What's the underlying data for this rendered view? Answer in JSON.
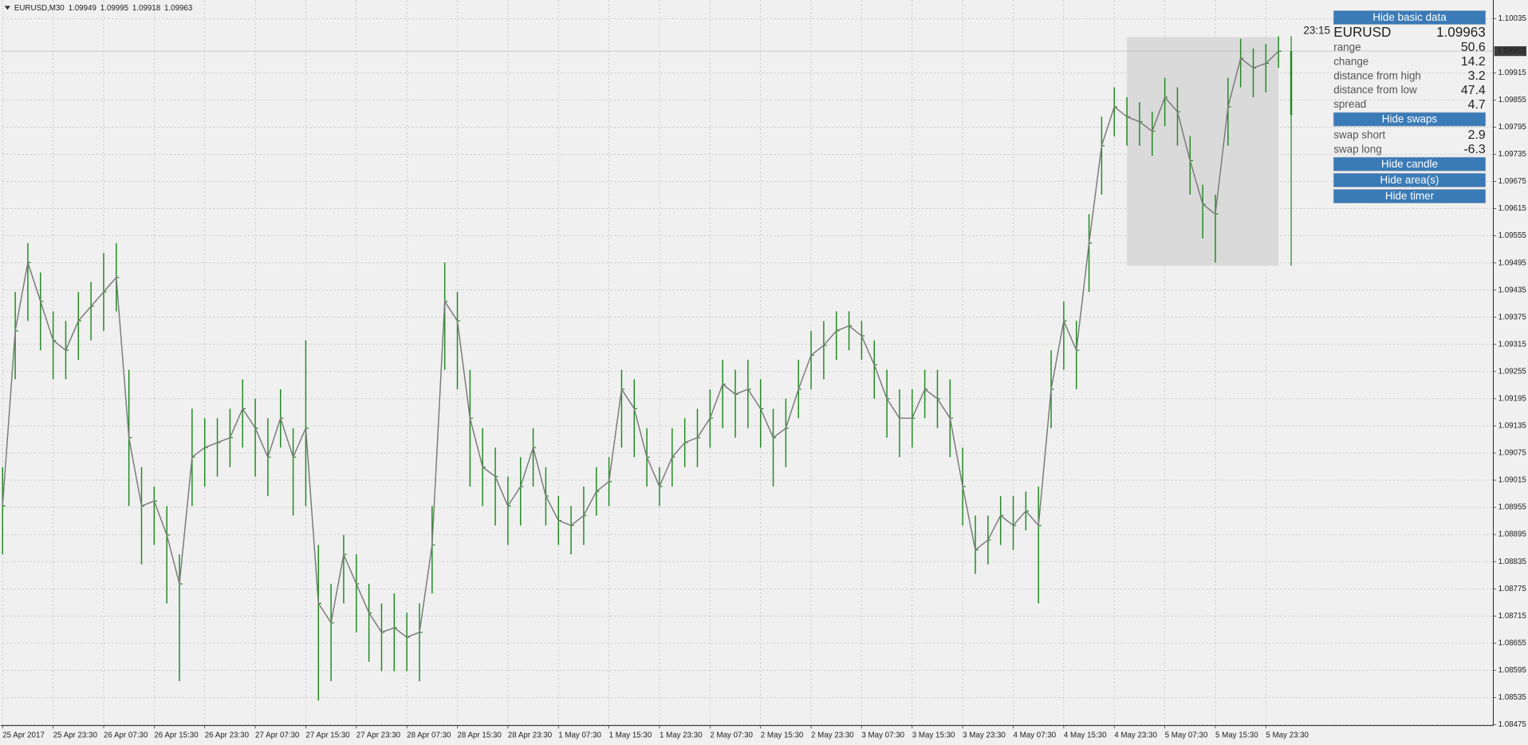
{
  "chart_data": {
    "type": "ohlc",
    "header": {
      "symbol": "EURUSD,M30",
      "open": 1.09949,
      "high": 1.09995,
      "low": 1.09918,
      "close": 1.09963
    },
    "xlim": [
      0,
      118
    ],
    "xticks": [
      {
        "value": 0,
        "label": "25 Apr 2017"
      },
      {
        "value": 4,
        "label": "25 Apr 23:30"
      },
      {
        "value": 8,
        "label": "26 Apr 07:30"
      },
      {
        "value": 12,
        "label": "26 Apr 15:30"
      },
      {
        "value": 16,
        "label": "26 Apr 23:30"
      },
      {
        "value": 20,
        "label": "27 Apr 07:30"
      },
      {
        "value": 24,
        "label": "27 Apr 15:30"
      },
      {
        "value": 28,
        "label": "27 Apr 23:30"
      },
      {
        "value": 32,
        "label": "28 Apr 07:30"
      },
      {
        "value": 36,
        "label": "28 Apr 15:30"
      },
      {
        "value": 40,
        "label": "28 Apr 23:30"
      },
      {
        "value": 44,
        "label": "1 May 07:30"
      },
      {
        "value": 48,
        "label": "1 May 15:30"
      },
      {
        "value": 52,
        "label": "1 May 23:30"
      },
      {
        "value": 56,
        "label": "2 May 07:30"
      },
      {
        "value": 60,
        "label": "2 May 15:30"
      },
      {
        "value": 64,
        "label": "2 May 23:30"
      },
      {
        "value": 68,
        "label": "3 May 07:30"
      },
      {
        "value": 72,
        "label": "3 May 15:30"
      },
      {
        "value": 76,
        "label": "3 May 23:30"
      },
      {
        "value": 80,
        "label": "4 May 07:30"
      },
      {
        "value": 84,
        "label": "4 May 15:30"
      },
      {
        "value": 88,
        "label": "4 May 23:30"
      },
      {
        "value": 92,
        "label": "5 May 07:30"
      },
      {
        "value": 96,
        "label": "5 May 15:30"
      },
      {
        "value": 100,
        "label": "5 May 23:30"
      }
    ],
    "ylim": [
      1.08473,
      1.10076
    ],
    "yticks": [
      1.10035,
      1.09915,
      1.09855,
      1.09795,
      1.09735,
      1.09675,
      1.09615,
      1.09555,
      1.09495,
      1.09435,
      1.09375,
      1.09315,
      1.09255,
      1.09195,
      1.09135,
      1.09075,
      1.09015,
      1.08955,
      1.08895,
      1.08835,
      1.08775,
      1.08715,
      1.08655,
      1.08595,
      1.08535,
      1.08475
    ],
    "grid": true,
    "color": "#1f8a1f",
    "ma_color": "#7a7a7a",
    "high": [
      1.09044,
      1.09431,
      1.09539,
      1.09474,
      1.09388,
      1.09367,
      1.09431,
      1.09453,
      1.09517,
      1.09539,
      1.09259,
      1.09044,
      1.09001,
      1.08958,
      1.08851,
      1.09173,
      1.09152,
      1.09152,
      1.09173,
      1.09238,
      1.09195,
      1.09152,
      1.09216,
      1.0913,
      1.09324,
      1.08872,
      1.08786,
      1.08894,
      1.08851,
      1.08786,
      1.08743,
      1.08765,
      1.08722,
      1.08743,
      1.08958,
      1.09496,
      1.09431,
      1.09259,
      1.0913,
      1.09087,
      1.09023,
      1.09066,
      1.0913,
      1.09044,
      1.0898,
      1.08958,
      1.09001,
      1.09044,
      1.09066,
      1.09259,
      1.09238,
      1.0913,
      1.09044,
      1.0913,
      1.09152,
      1.09173,
      1.09216,
      1.09281,
      1.09259,
      1.09281,
      1.09238,
      1.09173,
      1.09195,
      1.09281,
      1.09345,
      1.09367,
      1.09388,
      1.09388,
      1.09367,
      1.09324,
      1.09259,
      1.09216,
      1.09216,
      1.09259,
      1.09259,
      1.09238,
      1.09087,
      1.08937,
      1.08937,
      1.0898,
      1.0898,
      1.0899,
      1.09001,
      1.09302,
      1.0941,
      1.09367,
      1.09603,
      1.09818,
      1.09883,
      1.09861,
      1.0985,
      1.09829,
      1.09904,
      1.09883,
      1.09775,
      1.09668,
      1.09646,
      1.09904,
      1.0999,
      1.09969,
      1.09979,
      1.09996
    ],
    "low": [
      1.08851,
      1.09238,
      1.09367,
      1.09302,
      1.09238,
      1.09238,
      1.09281,
      1.09324,
      1.09345,
      1.09388,
      1.08958,
      1.08829,
      1.08872,
      1.08743,
      1.08571,
      1.08958,
      1.09001,
      1.09023,
      1.09044,
      1.09087,
      1.09023,
      1.0898,
      1.09087,
      1.08937,
      1.08958,
      1.08528,
      1.08571,
      1.08743,
      1.08679,
      1.08614,
      1.08593,
      1.08593,
      1.08593,
      1.08571,
      1.08765,
      1.09259,
      1.09216,
      1.09001,
      1.08958,
      1.08915,
      1.08872,
      1.08915,
      1.09001,
      1.08915,
      1.08872,
      1.08851,
      1.08872,
      1.08937,
      1.08958,
      1.09087,
      1.09066,
      1.09001,
      1.08958,
      1.09001,
      1.09044,
      1.09044,
      1.09087,
      1.0913,
      1.09109,
      1.0913,
      1.09087,
      1.09001,
      1.09044,
      1.09152,
      1.09216,
      1.09238,
      1.09281,
      1.09302,
      1.09281,
      1.09195,
      1.09109,
      1.09066,
      1.09087,
      1.09152,
      1.0913,
      1.09066,
      1.08915,
      1.08808,
      1.08829,
      1.08872,
      1.08861,
      1.08904,
      1.08743,
      1.0913,
      1.09259,
      1.09216,
      1.09431,
      1.09646,
      1.09775,
      1.09754,
      1.09754,
      1.09732,
      1.09797,
      1.09754,
      1.09646,
      1.09549,
      1.09496,
      1.09754,
      1.09883,
      1.09861,
      1.09872,
      1.09926
    ],
    "close": [
      1.08958,
      1.09345,
      1.09496,
      1.0941,
      1.09324,
      1.09302,
      1.09367,
      1.09399,
      1.09431,
      1.09463,
      1.09109,
      1.08958,
      1.08969,
      1.08894,
      1.08786,
      1.09066,
      1.09087,
      1.09098,
      1.09109,
      1.09173,
      1.0913,
      1.09066,
      1.09152,
      1.09066,
      1.0913,
      1.08743,
      1.087,
      1.08851,
      1.08786,
      1.08722,
      1.08679,
      1.08689,
      1.08668,
      1.08679,
      1.08872,
      1.0941,
      1.09367,
      1.09152,
      1.09044,
      1.09023,
      1.08958,
      1.09001,
      1.09087,
      1.0898,
      1.08926,
      1.08915,
      1.08937,
      1.0899,
      1.09012,
      1.09216,
      1.09173,
      1.09066,
      1.09001,
      1.09066,
      1.09098,
      1.09109,
      1.09152,
      1.09227,
      1.09205,
      1.09216,
      1.09173,
      1.09109,
      1.0913,
      1.09216,
      1.09291,
      1.09313,
      1.09345,
      1.09356,
      1.09334,
      1.0927,
      1.09195,
      1.09152,
      1.09152,
      1.09216,
      1.09195,
      1.09152,
      1.09001,
      1.08861,
      1.08883,
      1.08937,
      1.08915,
      1.08947,
      1.08915,
      1.09216,
      1.09367,
      1.09302,
      1.09539,
      1.09754,
      1.0984,
      1.09818,
      1.09807,
      1.09786,
      1.09861,
      1.09829,
      1.09721,
      1.09625,
      1.09603,
      1.0984,
      1.09947,
      1.09926,
      1.09936,
      1.09963
    ],
    "area": {
      "x": [
        89,
        101
      ],
      "high": 1.09994,
      "low": 1.09489,
      "color": "#dadada"
    },
    "candle": {
      "x": 102,
      "open": 1.09822,
      "high": 1.09996,
      "low": 1.09489,
      "close": 1.09963
    },
    "current_price": 1.09963,
    "timer": "23:15"
  },
  "panel": {
    "basic_button": "Hide basic data",
    "symbol": "EURUSD",
    "price": 1.09963,
    "stats": [
      {
        "label": "range",
        "value": 50.6
      },
      {
        "label": "change",
        "value": 14.2
      },
      {
        "label": "distance from high",
        "value": 3.2
      },
      {
        "label": "distance from low",
        "value": 47.4
      },
      {
        "label": "spread",
        "value": 4.7
      }
    ],
    "swaps_button": "Hide swaps",
    "swaps": [
      {
        "label": "swap short",
        "value": 2.9
      },
      {
        "label": "swap long",
        "value": -6.3
      }
    ],
    "buttons": [
      "Hide candle",
      "Hide area(s)",
      "Hide timer"
    ],
    "up_color": "#3cb371",
    "down_color": "#e0708f",
    "button_color": "#3a7ab6",
    "symbol_color": "#3a7ab6"
  }
}
